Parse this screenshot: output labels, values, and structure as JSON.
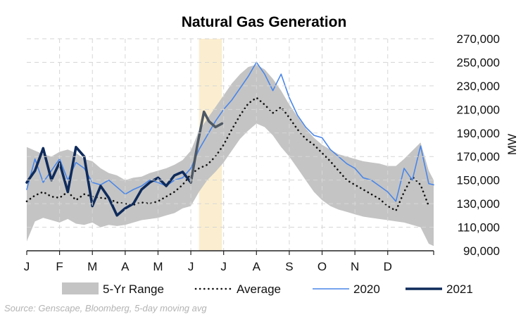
{
  "chart_data": {
    "type": "line",
    "title": "Natural Gas Generation",
    "ylabel": "MW",
    "xlabel": "",
    "source": "Source: Genscape, Bloomberg, 5-day moving avg",
    "ylim": [
      90000,
      270000
    ],
    "yticks": [
      90000,
      110000,
      130000,
      150000,
      170000,
      190000,
      210000,
      230000,
      250000,
      270000
    ],
    "ytick_labels": [
      "90,000",
      "110,000",
      "130,000",
      "150,000",
      "170,000",
      "190,000",
      "210,000",
      "230,000",
      "250,000",
      "270,000"
    ],
    "xlim": [
      0,
      12.4
    ],
    "categories": [
      "J",
      "F",
      "M",
      "A",
      "M",
      "J",
      "J",
      "A",
      "S",
      "O",
      "N",
      "D"
    ],
    "grid": true,
    "highlight": {
      "x_range": [
        5.25,
        5.95
      ],
      "color": "#fbeed0"
    },
    "range_band": {
      "name": "5-Yr Range",
      "color": "#c4c4c4",
      "x": [
        0,
        0.25,
        0.5,
        0.75,
        1,
        1.25,
        1.5,
        1.75,
        2,
        2.25,
        2.5,
        2.75,
        3,
        3.25,
        3.5,
        3.75,
        4,
        4.25,
        4.5,
        4.75,
        5,
        5.25,
        5.5,
        5.75,
        6,
        6.25,
        6.5,
        6.75,
        7,
        7.25,
        7.5,
        7.75,
        8,
        8.25,
        8.5,
        8.75,
        9,
        9.25,
        9.5,
        9.75,
        10,
        10.25,
        10.5,
        10.75,
        11,
        11.25,
        11.5,
        11.75,
        12,
        12.25,
        12.4
      ],
      "low": [
        98000,
        115000,
        118000,
        116000,
        114000,
        117000,
        113000,
        112000,
        114000,
        110000,
        112000,
        111000,
        112000,
        114000,
        116000,
        117000,
        118000,
        120000,
        122000,
        126000,
        128000,
        140000,
        150000,
        157000,
        165000,
        175000,
        185000,
        192000,
        198000,
        195000,
        188000,
        178000,
        170000,
        160000,
        150000,
        140000,
        133000,
        128000,
        125000,
        123000,
        121000,
        119000,
        118000,
        117000,
        116000,
        115000,
        114000,
        112000,
        110000,
        96000,
        94000
      ],
      "high": [
        178000,
        175000,
        172000,
        170000,
        174000,
        176000,
        173000,
        168000,
        166000,
        160000,
        156000,
        154000,
        150000,
        152000,
        153000,
        156000,
        158000,
        160000,
        163000,
        167000,
        175000,
        192000,
        202000,
        212000,
        222000,
        232000,
        240000,
        246000,
        248000,
        244000,
        236000,
        226000,
        214000,
        204000,
        194000,
        186000,
        180000,
        176000,
        172000,
        170000,
        168000,
        166000,
        165000,
        164000,
        162000,
        162000,
        168000,
        175000,
        182000,
        158000,
        150000
      ]
    },
    "series": [
      {
        "name": "Average",
        "style": "dotted",
        "color": "#111111",
        "x": [
          0,
          0.25,
          0.5,
          0.75,
          1,
          1.25,
          1.5,
          1.75,
          2,
          2.25,
          2.5,
          2.75,
          3,
          3.25,
          3.5,
          3.75,
          4,
          4.25,
          4.5,
          4.75,
          5,
          5.25,
          5.5,
          5.75,
          6,
          6.25,
          6.5,
          6.75,
          7,
          7.25,
          7.5,
          7.75,
          8,
          8.25,
          8.5,
          8.75,
          9,
          9.25,
          9.5,
          9.75,
          10,
          10.25,
          10.5,
          10.75,
          11,
          11.25,
          11.5,
          11.75,
          12,
          12.25
        ],
        "values": [
          132000,
          137000,
          140000,
          136000,
          135000,
          140000,
          133000,
          138000,
          136000,
          135000,
          134000,
          131000,
          130000,
          129000,
          131000,
          130000,
          132000,
          136000,
          140000,
          146000,
          155000,
          160000,
          163000,
          170000,
          180000,
          193000,
          205000,
          215000,
          220000,
          214000,
          207000,
          212000,
          203000,
          193000,
          185000,
          180000,
          173000,
          166000,
          158000,
          150000,
          146000,
          142000,
          138000,
          134000,
          128000,
          124000,
          140000,
          153000,
          146000,
          128000
        ]
      },
      {
        "name": "2020",
        "style": "solid",
        "color": "#4a86e8",
        "x": [
          0,
          0.25,
          0.5,
          0.75,
          1,
          1.25,
          1.5,
          1.75,
          2,
          2.25,
          2.5,
          2.75,
          3,
          3.25,
          3.5,
          3.75,
          4,
          4.25,
          4.5,
          4.75,
          5,
          5.25,
          5.5,
          5.75,
          6,
          6.25,
          6.5,
          6.75,
          7,
          7.25,
          7.5,
          7.75,
          8,
          8.25,
          8.5,
          8.75,
          9,
          9.25,
          9.5,
          9.75,
          10,
          10.25,
          10.5,
          10.75,
          11,
          11.25,
          11.5,
          11.75,
          12,
          12.25,
          12.4
        ],
        "values": [
          142000,
          168000,
          148000,
          158000,
          168000,
          150000,
          165000,
          160000,
          148000,
          146000,
          150000,
          144000,
          138000,
          142000,
          145000,
          150000,
          148000,
          145000,
          150000,
          152000,
          160000,
          176000,
          188000,
          200000,
          210000,
          218000,
          228000,
          238000,
          250000,
          240000,
          226000,
          240000,
          220000,
          205000,
          195000,
          188000,
          186000,
          176000,
          170000,
          164000,
          160000,
          152000,
          150000,
          145000,
          140000,
          132000,
          160000,
          150000,
          179000,
          147000,
          146000
        ]
      },
      {
        "name": "2021",
        "style": "solid",
        "color": "#0f2b5b",
        "x": [
          0,
          0.25,
          0.5,
          0.75,
          1,
          1.25,
          1.5,
          1.75,
          2,
          2.25,
          2.5,
          2.75,
          3,
          3.25,
          3.5,
          3.75,
          4,
          4.25,
          4.5,
          4.75,
          5
        ],
        "values": [
          148000,
          158000,
          177000,
          150000,
          165000,
          140000,
          178000,
          170000,
          128000,
          145000,
          135000,
          120000,
          126000,
          130000,
          142000,
          148000,
          152000,
          145000,
          154000,
          157000,
          148000
        ]
      },
      {
        "name": "2021",
        "legend": false,
        "style": "solid",
        "color": "#4f5964",
        "x": [
          5,
          5.2,
          5.4,
          5.55,
          5.75,
          5.95
        ],
        "values": [
          148000,
          180000,
          208000,
          200000,
          195000,
          198000
        ]
      }
    ],
    "legend": [
      "5-Yr Range",
      "Average",
      "2020",
      "2021"
    ],
    "legend_position": "bottom"
  }
}
